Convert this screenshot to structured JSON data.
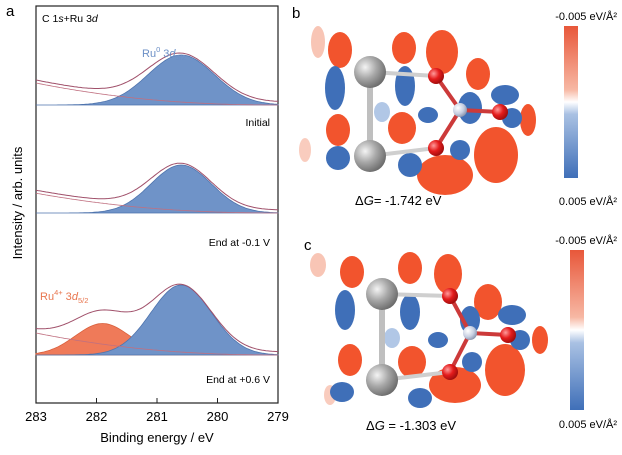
{
  "panels": {
    "a": {
      "label": "a",
      "corner_text": {
        "prefix": "C 1",
        "s": "s",
        "mid": "+Ru 3",
        "d": "d"
      },
      "ru0_label": {
        "main": "Ru",
        "sup": "0",
        "orb": " 3",
        "d": "d",
        "sub": "5/2"
      },
      "ru4_label": {
        "main": "Ru",
        "sup": "4+",
        "orb": " 3",
        "d": "d",
        "sub": "5/2"
      },
      "trace_labels": [
        "Initial",
        "End at -0.1 V",
        "End at +0.6 V"
      ]
    },
    "b": {
      "label": "b",
      "colorbar_top": "-0.005 eV/Å²",
      "colorbar_bottom": "0.005 eV/Å²",
      "energy_prefix": "Δ",
      "energy_symbol": "G",
      "energy_value": "= -1.742 eV"
    },
    "c": {
      "label": "c",
      "colorbar_top": "-0.005 eV/Å²",
      "colorbar_bottom": "0.005 eV/Å²",
      "energy_prefix": "Δ",
      "energy_symbol": "G",
      "energy_value": " = -1.303 eV"
    }
  },
  "colors": {
    "ru0_fill": "#6f93c8",
    "ru4_fill": "#ef7a59",
    "envelope": "#a0506a",
    "background_line": "#c07080",
    "ru0_text": "#6b8fc6",
    "ru4_text": "#e8764f",
    "ru_atom": "#9a9a9a",
    "o_atom": "#e02020",
    "n_atom": "#b8c2d6",
    "diff_red": "#f2542d",
    "diff_blue": "#3f6fb8"
  },
  "chart_data": {
    "type": "area",
    "title": "",
    "xlabel": "Binding energy / eV",
    "ylabel": "Intensity / arb. units",
    "xlim": [
      283,
      279
    ],
    "xticks": [
      "283",
      "282",
      "281",
      "280",
      "279"
    ],
    "xtick_values": [
      283,
      282,
      281,
      280,
      279
    ],
    "series": [
      {
        "name": "Initial",
        "peaks": [
          {
            "component": "Ru0 3d5/2",
            "center": 280.6,
            "width": 0.55,
            "height": 1.0
          }
        ]
      },
      {
        "name": "End at -0.1 V",
        "peaks": [
          {
            "component": "Ru0 3d5/2",
            "center": 280.6,
            "width": 0.5,
            "height": 1.0
          }
        ]
      },
      {
        "name": "End at +0.6 V",
        "peaks": [
          {
            "component": "Ru4+ 3d5/2",
            "center": 281.9,
            "width": 0.45,
            "height": 0.45
          },
          {
            "component": "Ru0 3d5/2",
            "center": 280.6,
            "width": 0.5,
            "height": 1.0
          }
        ]
      }
    ]
  }
}
